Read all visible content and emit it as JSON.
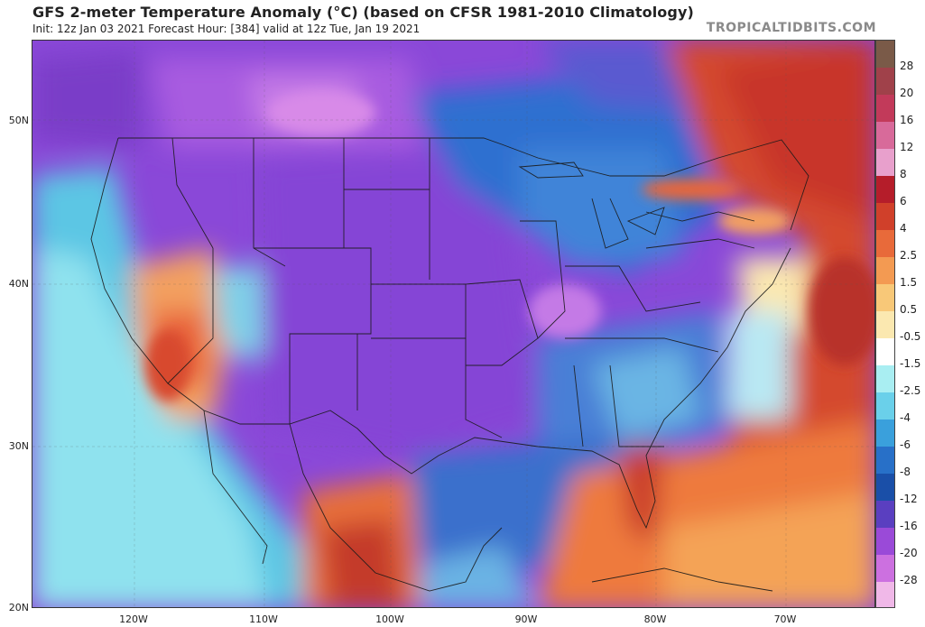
{
  "header": {
    "title": "GFS 2-meter Temperature Anomaly (°C) (based on CFSR 1981-2010 Climatology)",
    "subtitle": "Init: 12z Jan 03 2021   Forecast Hour: [384]   valid at 12z Tue, Jan 19 2021",
    "brand": "TROPICALTIDBITS.COM"
  },
  "map": {
    "lat_labels": [
      "50N",
      "40N",
      "30N",
      "20N"
    ],
    "lon_labels": [
      "120W",
      "110W",
      "100W",
      "90W",
      "80W",
      "70W"
    ]
  },
  "colorbar": {
    "labels": [
      "28",
      "20",
      "16",
      "12",
      "8",
      "6",
      "4",
      "2.5",
      "1.5",
      "0.5",
      "-0.5",
      "-1.5",
      "-2.5",
      "-4",
      "-6",
      "-8",
      "-12",
      "-16",
      "-20",
      "-28"
    ],
    "colors": [
      "#7a5a48",
      "#a0414a",
      "#c23a5a",
      "#d86a9a",
      "#e8a0cc",
      "#b51d2a",
      "#d0402a",
      "#e86a3a",
      "#f39a52",
      "#f8c878",
      "#fbe8b0",
      "#ffffff",
      "#a9eef2",
      "#6ad0ea",
      "#3aa0dc",
      "#2870c8",
      "#1a4fa8",
      "#5a3fc0",
      "#9a4ad8",
      "#cc70e0",
      "#f0b8e8"
    ]
  },
  "colors": {
    "cold_purple": "#8a48d8",
    "cold_blue": "#2f6fd0",
    "warm_red": "#d0402a",
    "warm_orange": "#ee7a3e",
    "neutral_pale": "#fbe8b0"
  }
}
